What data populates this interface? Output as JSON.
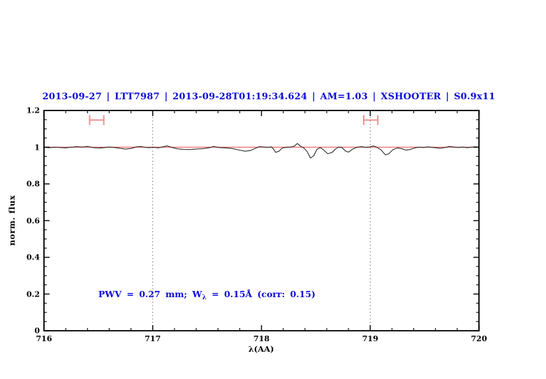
{
  "chart_data": {
    "type": "line",
    "title": "2013-09-27 | LTT7987 | 2013-09-28T01:19:34.624 | AM=1.03 | XSHOOTER | S0.9x11",
    "title_color": "#0b0bd6",
    "xlabel": "λ(AA)",
    "ylabel": "norm. flux",
    "xlim": [
      716,
      720
    ],
    "ylim": [
      0,
      1.2
    ],
    "x_major_ticks": [
      716,
      717,
      718,
      719,
      720
    ],
    "x_tick_labels": [
      "716",
      "717",
      "718",
      "719",
      "720"
    ],
    "x_minor_step": 0.2,
    "y_major_ticks": [
      0,
      0.2,
      0.4,
      0.6,
      0.8,
      1,
      1.2
    ],
    "y_tick_labels": [
      "0",
      "0.2",
      "0.4",
      "0.6",
      "0.8",
      "1",
      "1.2"
    ],
    "y_minor_step": 0.05,
    "grid": false,
    "legend": "none",
    "axis_color": "#000000",
    "dotted_guides_x": [
      717,
      719
    ],
    "dotted_guide_color": "#444444",
    "continuum_line": {
      "y": 1.0,
      "color": "#ee6a6a"
    },
    "range_markers": [
      {
        "x_start": 716.42,
        "x_end": 716.55,
        "y": 1.148,
        "cap_half": 0.027
      },
      {
        "x_start": 718.94,
        "x_end": 719.07,
        "y": 1.148,
        "cap_half": 0.027
      }
    ],
    "marker_color": "#f19090",
    "annotation": {
      "text_before_sub": "PWV = 0.27 mm; W",
      "sub": "λ",
      "text_after_sub": " = 0.15Å (corr: 0.15)",
      "color": "#0b0bd6",
      "x": 716.5,
      "y": 0.2
    },
    "series": [
      {
        "name": "observed-spectrum",
        "color": "#1a1a1a",
        "x": [
          716.0,
          716.05,
          716.1,
          716.15,
          716.2,
          716.25,
          716.3,
          716.35,
          716.4,
          716.45,
          716.5,
          716.55,
          716.6,
          716.65,
          716.7,
          716.75,
          716.8,
          716.85,
          716.89,
          716.93,
          716.97,
          717.0,
          717.05,
          717.1,
          717.13,
          717.17,
          717.22,
          717.28,
          717.34,
          717.4,
          717.46,
          717.52,
          717.56,
          717.61,
          717.67,
          717.73,
          717.79,
          717.85,
          717.9,
          717.94,
          717.98,
          718.02,
          718.06,
          718.09,
          718.11,
          718.13,
          718.16,
          718.19,
          718.23,
          718.27,
          718.3,
          718.33,
          718.36,
          718.39,
          718.42,
          718.45,
          718.48,
          718.51,
          718.54,
          718.57,
          718.61,
          718.65,
          718.68,
          718.71,
          718.74,
          718.77,
          718.8,
          718.84,
          718.88,
          718.92,
          718.96,
          719.0,
          719.03,
          719.06,
          719.1,
          719.14,
          719.17,
          719.21,
          719.25,
          719.29,
          719.33,
          719.37,
          719.41,
          719.45,
          719.49,
          719.53,
          719.57,
          719.61,
          719.65,
          719.69,
          719.73,
          719.77,
          719.81,
          719.85,
          719.89,
          719.93,
          719.97,
          720.0
        ],
        "y": [
          0.999,
          0.997,
          1.0,
          0.998,
          0.996,
          1.0,
          1.003,
          1.001,
          1.004,
          0.998,
          0.995,
          0.997,
          1.001,
          0.998,
          0.994,
          0.99,
          0.993,
          1.002,
          1.004,
          0.999,
          0.997,
          1.0,
          0.996,
          1.003,
          1.007,
          1.0,
          0.992,
          0.988,
          0.987,
          0.99,
          0.992,
          0.997,
          1.004,
          0.998,
          0.996,
          0.993,
          0.985,
          0.978,
          0.982,
          0.993,
          1.003,
          1.001,
          0.999,
          1.002,
          0.99,
          0.972,
          0.978,
          0.995,
          1.0,
          1.001,
          1.005,
          1.02,
          1.005,
          0.996,
          0.976,
          0.941,
          0.953,
          0.988,
          0.998,
          0.986,
          0.964,
          0.972,
          0.99,
          1.001,
          0.998,
          0.98,
          0.973,
          0.99,
          1.0,
          1.003,
          0.999,
          1.002,
          1.007,
          1.0,
          0.985,
          0.958,
          0.964,
          0.987,
          0.996,
          0.992,
          0.984,
          0.988,
          0.996,
          1.0,
          0.998,
          1.002,
          0.999,
          0.996,
          0.994,
          0.999,
          1.004,
          1.001,
          0.998,
          1.001,
          0.997,
          1.0,
          1.002,
          1.0
        ]
      }
    ]
  }
}
